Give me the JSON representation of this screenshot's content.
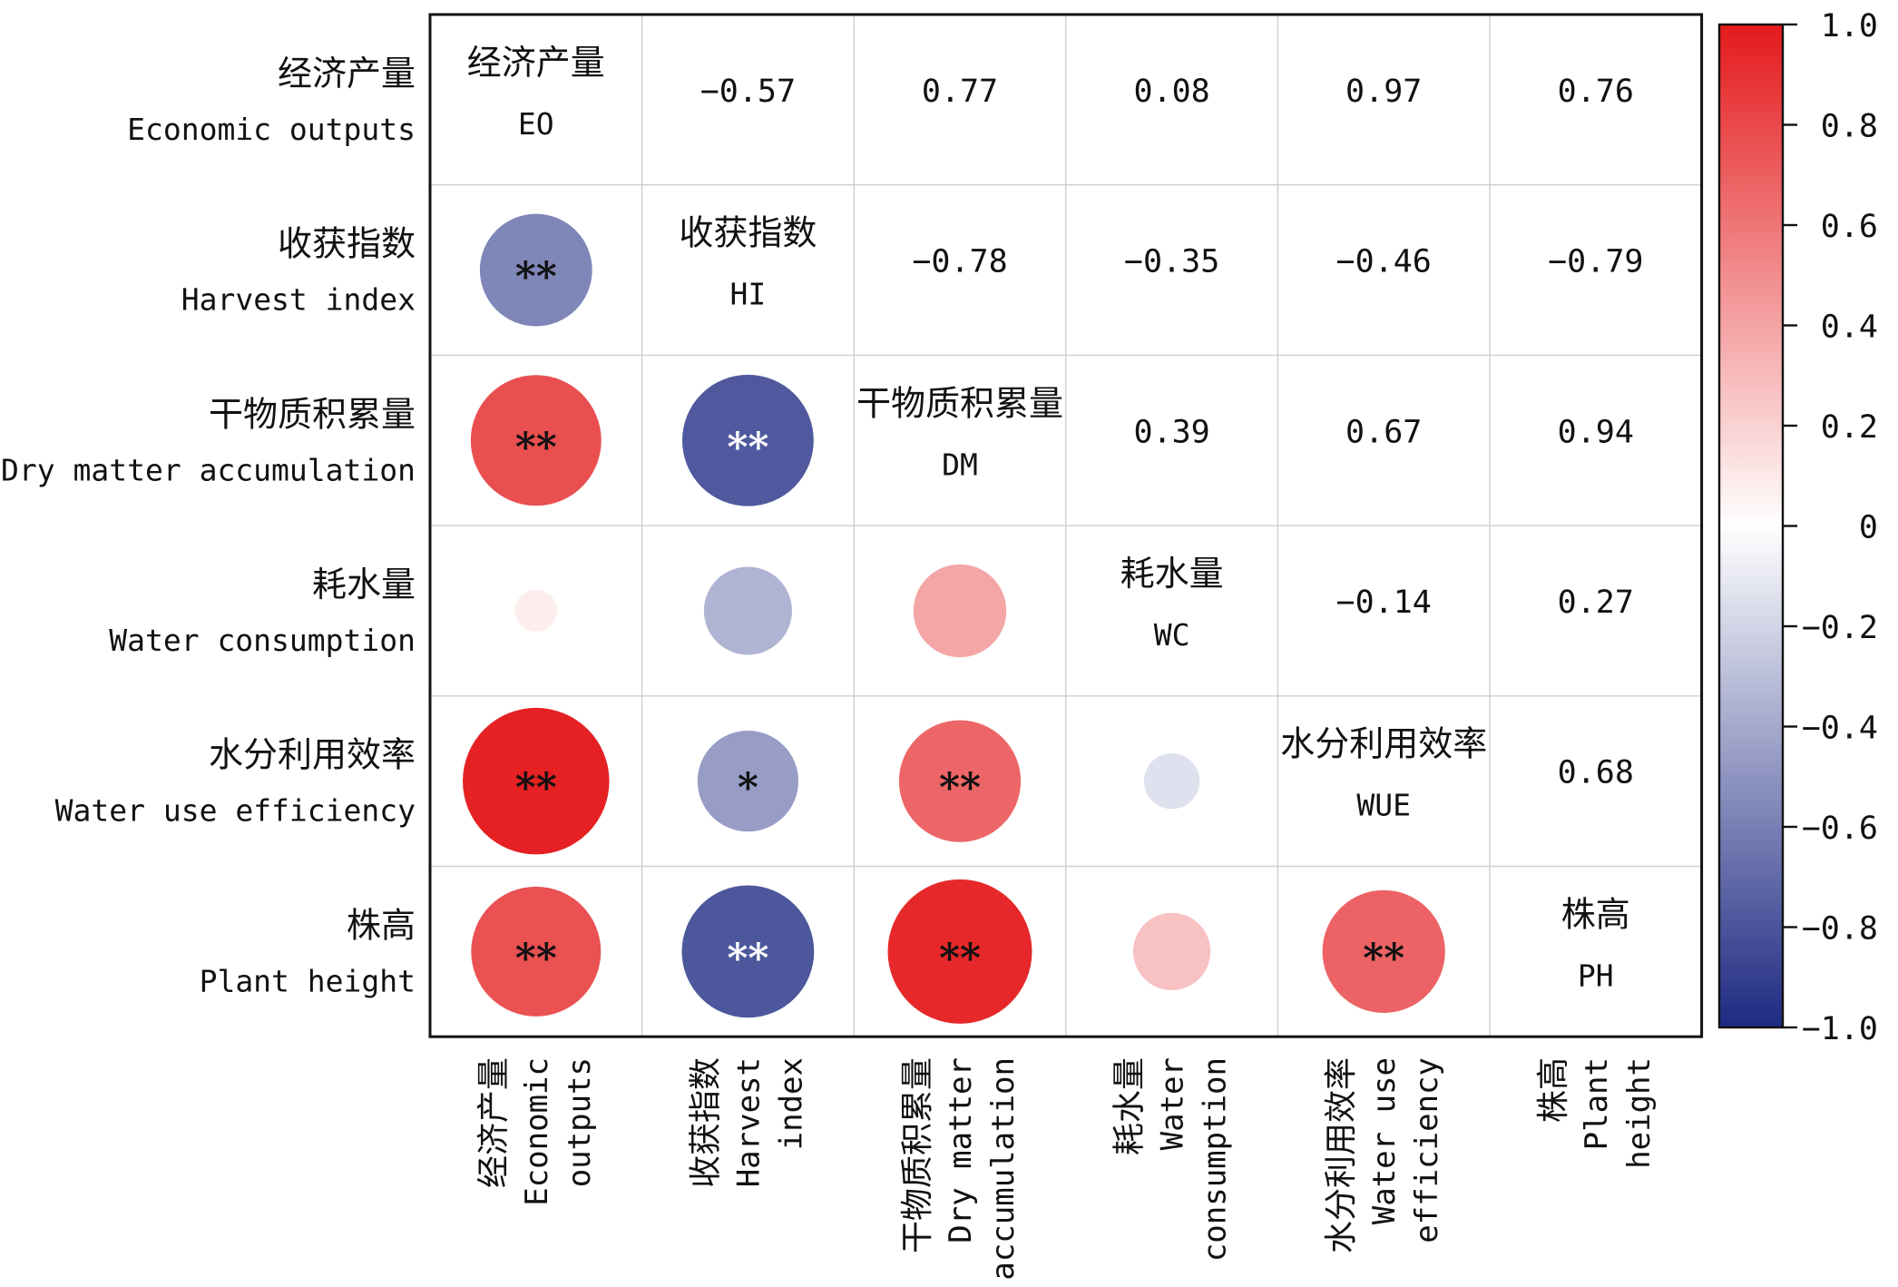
{
  "chart_data": {
    "type": "heatmap",
    "variables": [
      {
        "cn": "经济产量",
        "en": "Economic outputs",
        "en_lines": [
          "Economic",
          "outputs"
        ],
        "abbr": "EO"
      },
      {
        "cn": "收获指数",
        "en": "Harvest index",
        "en_lines": [
          "Harvest",
          "index"
        ],
        "abbr": "HI"
      },
      {
        "cn": "干物质积累量",
        "en": "Dry matter accumulation",
        "en_lines": [
          "Dry matter",
          "accumulation"
        ],
        "abbr": "DM"
      },
      {
        "cn": "耗水量",
        "en": "Water consumption",
        "en_lines": [
          "Water",
          "consumption"
        ],
        "abbr": "WC"
      },
      {
        "cn": "水分利用效率",
        "en": "Water use efficiency",
        "en_lines": [
          "Water use",
          "efficiency"
        ],
        "abbr": "WUE"
      },
      {
        "cn": "株高",
        "en": "Plant height",
        "en_lines": [
          "Plant",
          "height"
        ],
        "abbr": "PH"
      }
    ],
    "upper_labels": [
      {
        "row": 0,
        "col": 1,
        "text": "−0.57"
      },
      {
        "row": 0,
        "col": 2,
        "text": "0.77"
      },
      {
        "row": 0,
        "col": 3,
        "text": "0.08"
      },
      {
        "row": 0,
        "col": 4,
        "text": "0.97"
      },
      {
        "row": 0,
        "col": 5,
        "text": "0.76"
      },
      {
        "row": 1,
        "col": 2,
        "text": "−0.78"
      },
      {
        "row": 1,
        "col": 3,
        "text": "−0.35"
      },
      {
        "row": 1,
        "col": 4,
        "text": "−0.46"
      },
      {
        "row": 1,
        "col": 5,
        "text": "−0.79"
      },
      {
        "row": 2,
        "col": 3,
        "text": "0.39"
      },
      {
        "row": 2,
        "col": 4,
        "text": "0.67"
      },
      {
        "row": 2,
        "col": 5,
        "text": "0.94"
      },
      {
        "row": 3,
        "col": 4,
        "text": "−0.14"
      },
      {
        "row": 3,
        "col": 5,
        "text": "0.27"
      },
      {
        "row": 4,
        "col": 5,
        "text": "0.68"
      }
    ],
    "lower_circles": [
      {
        "row": 1,
        "col": 0,
        "value": -0.57,
        "sig": "**"
      },
      {
        "row": 2,
        "col": 0,
        "value": 0.77,
        "sig": "**"
      },
      {
        "row": 2,
        "col": 1,
        "value": -0.78,
        "sig": "**"
      },
      {
        "row": 3,
        "col": 0,
        "value": 0.08,
        "sig": ""
      },
      {
        "row": 3,
        "col": 1,
        "value": -0.35,
        "sig": ""
      },
      {
        "row": 3,
        "col": 2,
        "value": 0.39,
        "sig": ""
      },
      {
        "row": 4,
        "col": 0,
        "value": 0.97,
        "sig": "**"
      },
      {
        "row": 4,
        "col": 1,
        "value": -0.46,
        "sig": "*"
      },
      {
        "row": 4,
        "col": 2,
        "value": 0.67,
        "sig": "**"
      },
      {
        "row": 4,
        "col": 3,
        "value": -0.14,
        "sig": ""
      },
      {
        "row": 5,
        "col": 0,
        "value": 0.76,
        "sig": "**"
      },
      {
        "row": 5,
        "col": 1,
        "value": -0.79,
        "sig": "**"
      },
      {
        "row": 5,
        "col": 2,
        "value": 0.94,
        "sig": "**"
      },
      {
        "row": 5,
        "col": 3,
        "value": 0.27,
        "sig": ""
      },
      {
        "row": 5,
        "col": 4,
        "value": 0.68,
        "sig": "**"
      }
    ],
    "colorbar": {
      "min": -1.0,
      "max": 1.0,
      "ticks": [
        {
          "value": 1.0,
          "label": "1.0"
        },
        {
          "value": 0.8,
          "label": "0.8"
        },
        {
          "value": 0.6,
          "label": "0.6"
        },
        {
          "value": 0.4,
          "label": "0.4"
        },
        {
          "value": 0.2,
          "label": "0.2"
        },
        {
          "value": 0,
          "label": "0"
        },
        {
          "value": -0.2,
          "label": "−0.2"
        },
        {
          "value": -0.4,
          "label": "−0.4"
        },
        {
          "value": -0.6,
          "label": "−0.6"
        },
        {
          "value": -0.8,
          "label": "−0.8"
        },
        {
          "value": -1.0,
          "label": "−1.0"
        }
      ],
      "colors": {
        "negative": "#1e2a82",
        "zero": "#ffffff",
        "positive": "#e41a1c"
      }
    },
    "grid": true
  }
}
